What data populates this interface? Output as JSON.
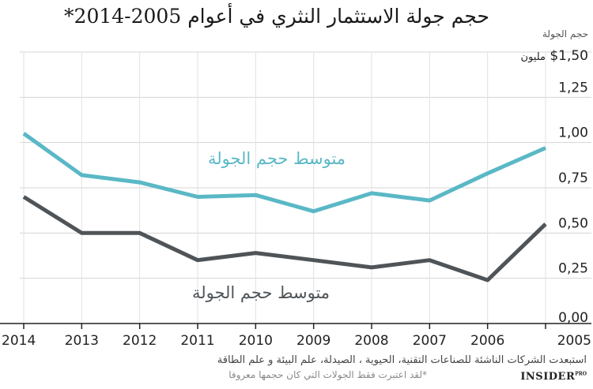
{
  "header": {
    "title": "حجم جولة الاستثمار النثري  في أعوام 2005-2014*"
  },
  "chart_data": {
    "type": "line",
    "ylabel": "حجم الجولة",
    "ytop_label": "$1,50",
    "ytop_unit": "مليون",
    "ylim": [
      0,
      1.5
    ],
    "yticks": [
      0.25,
      0.5,
      0.75,
      1.0,
      1.25
    ],
    "ytick_labels": [
      "0,25",
      "0,50",
      "0,75",
      "1,00",
      "1,25"
    ],
    "zero_label": "0,00",
    "categories": [
      "2014",
      "2013",
      "2012",
      "2011",
      "2010",
      "2009",
      "2008",
      "2007",
      "2006",
      "2005"
    ],
    "series": [
      {
        "name": "متوسط حجم الجولة",
        "color": "#5ab8c6",
        "values": [
          1.05,
          0.82,
          0.78,
          0.7,
          0.71,
          0.62,
          0.72,
          0.68,
          0.83,
          0.97
        ]
      },
      {
        "name": "متوسط حجم الجولة",
        "color": "#4f5458",
        "values": [
          0.7,
          0.5,
          0.5,
          0.35,
          0.39,
          0.35,
          0.31,
          0.35,
          0.24,
          0.55
        ]
      }
    ],
    "grid": true
  },
  "footer": {
    "note": "استبعدت الشركات الناشئة للصناعات التقنية، الحيوية ، الصيدلة، علم البيئة و علم الطاقة",
    "footnote": "*لقد اعتبرت فقط الجولات التي كان حجمها معروفا",
    "logo": "INSIDER",
    "logo_sup": "PRO"
  }
}
